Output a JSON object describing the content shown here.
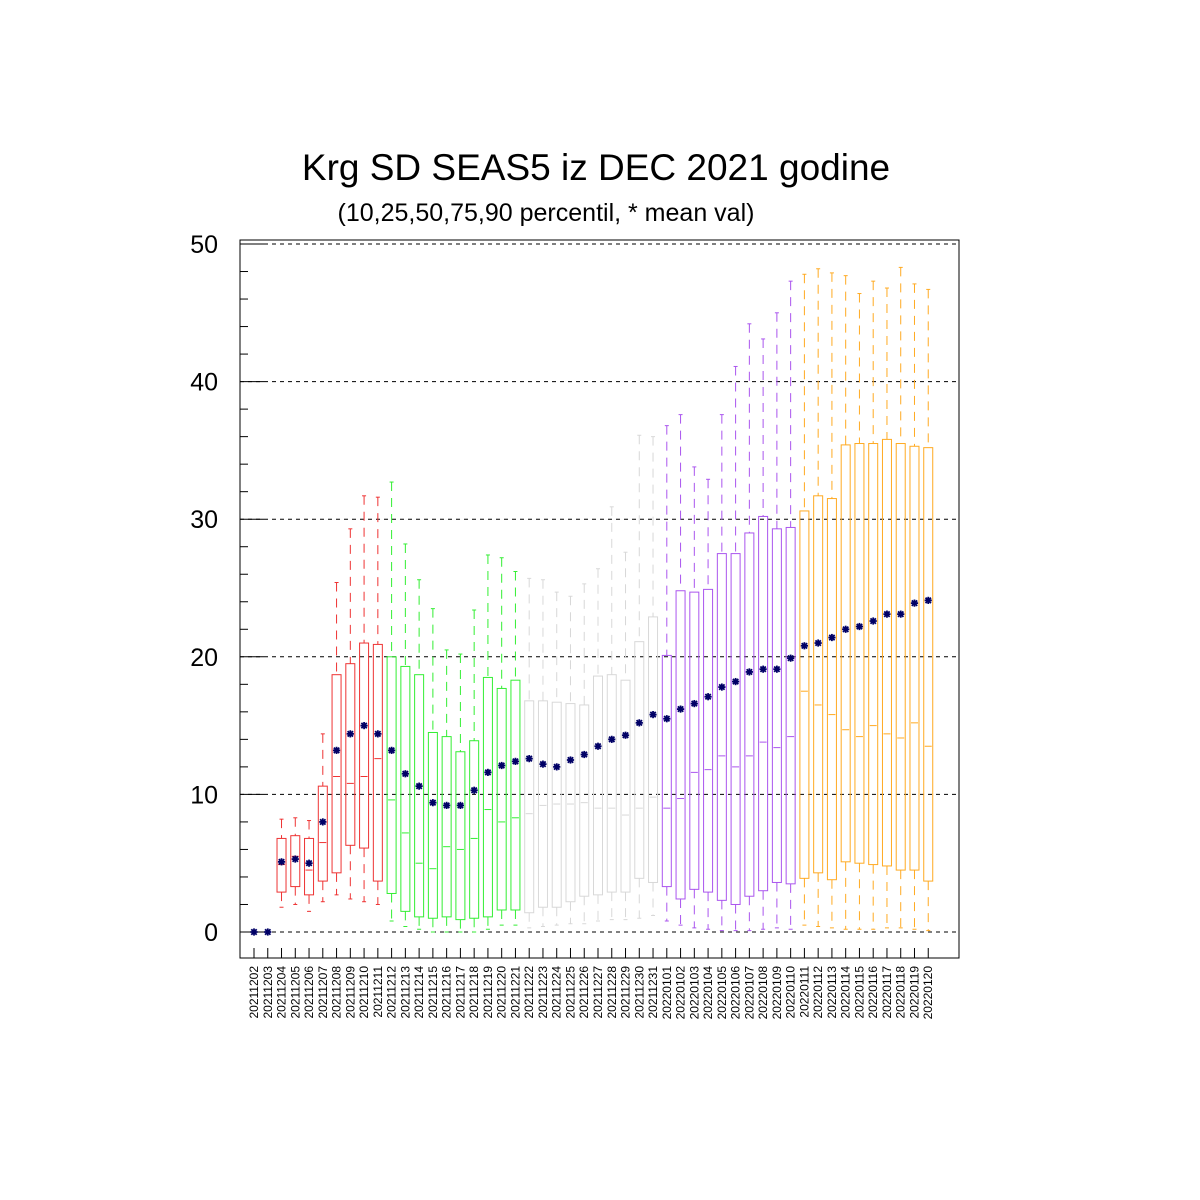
{
  "chart_data": {
    "type": "box",
    "title": "Krg SD SEAS5 iz DEC 2021 godine",
    "subtitle": "(10,25,50,75,90 percentil, * mean val)",
    "ylim": [
      0,
      50
    ],
    "yticks": [
      "0",
      "10",
      "20",
      "30",
      "40",
      "50"
    ],
    "grid": "horizontal dashed at 10, 20, 30, 40, 50",
    "mean_marker": "*",
    "mean_color": "#000066",
    "categories": [
      "20211202",
      "20211203",
      "20211204",
      "20211205",
      "20211206",
      "20211207",
      "20211208",
      "20211209",
      "20211210",
      "20211211",
      "20211212",
      "20211213",
      "20211214",
      "20211215",
      "20211216",
      "20211217",
      "20211218",
      "20211219",
      "20211220",
      "20211221",
      "20211222",
      "20211223",
      "20211224",
      "20211225",
      "20211226",
      "20211227",
      "20211228",
      "20211229",
      "20211230",
      "20211231",
      "20220101",
      "20220102",
      "20220103",
      "20220104",
      "20220105",
      "20220106",
      "20220107",
      "20220108",
      "20220109",
      "20220110",
      "20220111",
      "20220112",
      "20220113",
      "20220114",
      "20220115",
      "20220116",
      "20220117",
      "20220118",
      "20220119",
      "20220120"
    ],
    "colors": [
      "#000000",
      "#000000",
      "#ee3333",
      "#ee3333",
      "#ee3333",
      "#ee3333",
      "#ee3333",
      "#ee3333",
      "#ee3333",
      "#ee3333",
      "#33ee33",
      "#33ee33",
      "#33ee33",
      "#33ee33",
      "#33ee33",
      "#33ee33",
      "#33ee33",
      "#33ee33",
      "#33ee33",
      "#33ee33",
      "#d8d8d8",
      "#d8d8d8",
      "#d8d8d8",
      "#d8d8d8",
      "#d8d8d8",
      "#d8d8d8",
      "#d8d8d8",
      "#d8d8d8",
      "#d8d8d8",
      "#d8d8d8",
      "#aa55ee",
      "#aa55ee",
      "#aa55ee",
      "#aa55ee",
      "#aa55ee",
      "#aa55ee",
      "#aa55ee",
      "#aa55ee",
      "#aa55ee",
      "#aa55ee",
      "#ffaa22",
      "#ffaa22",
      "#ffaa22",
      "#ffaa22",
      "#ffaa22",
      "#ffaa22",
      "#ffaa22",
      "#ffaa22",
      "#ffaa22",
      "#ffaa22"
    ],
    "p10": [
      0,
      0,
      1.8,
      2.0,
      1.5,
      2.2,
      2.7,
      2.4,
      2.2,
      2.0,
      0.8,
      0.4,
      0.2,
      0,
      0,
      0,
      0,
      0.2,
      0.5,
      0.5,
      0.3,
      0.4,
      0.5,
      0.6,
      0.6,
      0.8,
      0.9,
      0.9,
      1.0,
      1.2,
      0.8,
      0.5,
      0.3,
      0.2,
      0.1,
      0.1,
      0.1,
      0.2,
      0.3,
      0.2,
      0.5,
      0.4,
      0.3,
      0.2,
      0.2,
      0.2,
      0.3,
      0.3,
      0.2,
      0.1
    ],
    "p25": [
      0,
      0,
      2.9,
      3.3,
      2.7,
      3.7,
      4.3,
      6.3,
      6.1,
      3.7,
      2.8,
      1.5,
      1.1,
      1.0,
      1.1,
      0.9,
      1.0,
      1.1,
      1.6,
      1.6,
      1.4,
      1.8,
      1.8,
      2.2,
      2.6,
      2.7,
      2.9,
      2.9,
      3.9,
      3.6,
      3.3,
      2.4,
      3.1,
      2.9,
      2.3,
      2.0,
      2.6,
      3.0,
      3.6,
      3.5,
      3.9,
      4.3,
      3.8,
      5.1,
      5.0,
      4.9,
      4.8,
      4.5,
      4.5,
      3.7
    ],
    "p50": [
      0,
      0,
      4.9,
      5.5,
      4.5,
      6.5,
      11.3,
      10.8,
      11.3,
      12.6,
      9.6,
      7.2,
      5.0,
      4.6,
      6.2,
      6.0,
      6.8,
      8.9,
      8.0,
      8.3,
      8.6,
      9.2,
      9.3,
      9.3,
      9.4,
      9.0,
      9.0,
      8.5,
      9.0,
      9.8,
      9.0,
      9.7,
      11.6,
      11.8,
      12.8,
      12.0,
      12.8,
      13.8,
      13.4,
      14.2,
      17.5,
      16.5,
      15.8,
      14.7,
      14.2,
      15.0,
      14.4,
      14.1,
      15.2,
      13.5
    ],
    "p75": [
      0,
      0,
      6.8,
      7.0,
      6.8,
      10.6,
      18.7,
      19.5,
      21.0,
      20.9,
      20.0,
      19.3,
      18.7,
      14.5,
      14.2,
      13.1,
      13.9,
      18.5,
      17.7,
      18.3,
      16.8,
      16.8,
      16.7,
      16.6,
      16.5,
      18.6,
      18.7,
      18.3,
      21.1,
      22.9,
      20.1,
      24.8,
      24.7,
      24.9,
      27.5,
      27.5,
      29.0,
      30.2,
      29.3,
      29.4,
      30.6,
      31.7,
      31.5,
      35.4,
      35.5,
      35.5,
      35.8,
      35.5,
      35.3,
      35.2
    ],
    "p90": [
      0,
      0,
      8.2,
      8.3,
      8.1,
      14.4,
      25.4,
      29.3,
      31.7,
      31.6,
      32.7,
      28.2,
      25.6,
      23.5,
      20.5,
      20.2,
      23.4,
      27.4,
      27.2,
      26.2,
      25.7,
      25.6,
      24.7,
      24.4,
      25.3,
      26.4,
      30.9,
      27.6,
      36.1,
      36.0,
      36.8,
      37.6,
      33.8,
      32.9,
      37.6,
      41.1,
      44.2,
      43.1,
      45.0,
      47.3,
      47.8,
      48.2,
      47.9,
      47.7,
      46.4,
      47.3,
      46.8,
      48.3,
      47.1,
      46.7
    ],
    "mean": [
      0,
      0,
      5.1,
      5.3,
      5.0,
      8.0,
      13.2,
      14.4,
      15.0,
      14.4,
      13.2,
      11.5,
      10.6,
      9.4,
      9.2,
      9.2,
      10.3,
      11.6,
      12.1,
      12.4,
      12.6,
      12.2,
      12.0,
      12.5,
      12.9,
      13.5,
      14.0,
      14.3,
      15.2,
      15.8,
      15.5,
      16.2,
      16.6,
      17.1,
      17.8,
      18.2,
      18.9,
      19.1,
      19.1,
      19.9,
      20.8,
      21.0,
      21.4,
      22.0,
      22.2,
      22.6,
      23.1,
      23.1,
      23.9,
      24.1
    ]
  }
}
